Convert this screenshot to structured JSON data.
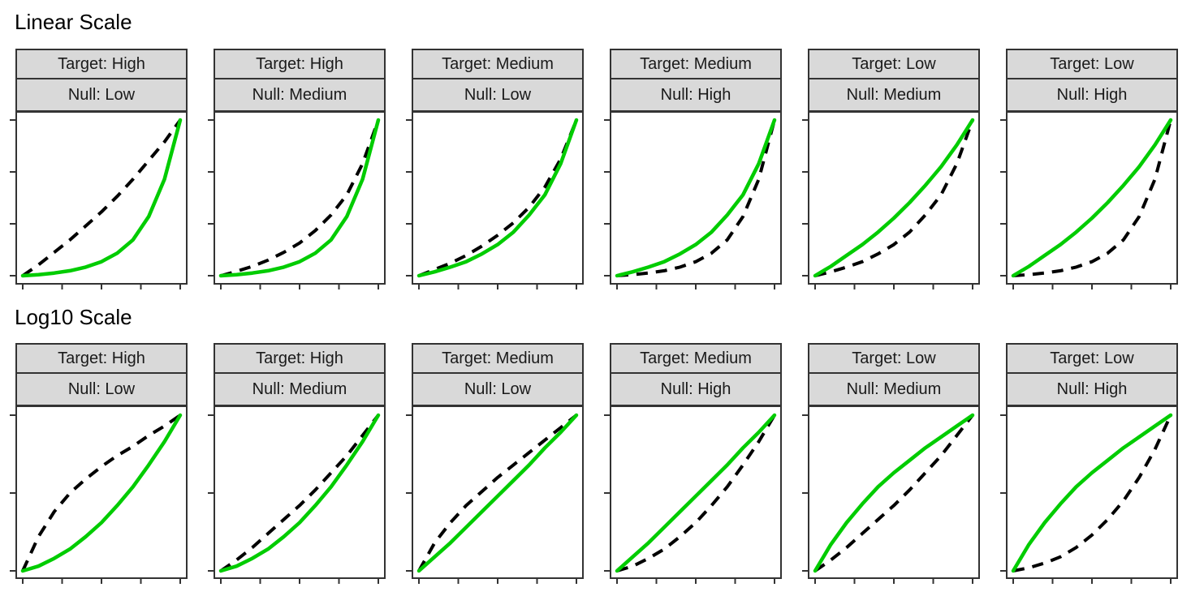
{
  "charts": {
    "colors": {
      "panel_border": "#333333",
      "strip_fill": "#d9d9d9",
      "green_line": "#00cc00",
      "dashed_line": "#000000"
    },
    "chart_data": [
      {
        "type": "line",
        "title": "Linear Scale",
        "facets": [
          {
            "target": "Target: High",
            "null": "Null: Low",
            "series": [
              {
                "style": "solid-green",
                "x": [
                  0,
                  0.1,
                  0.2,
                  0.3,
                  0.4,
                  0.5,
                  0.6,
                  0.7,
                  0.8,
                  0.9,
                  1
                ],
                "y": [
                  0,
                  0.007,
                  0.017,
                  0.032,
                  0.055,
                  0.09,
                  0.145,
                  0.23,
                  0.38,
                  0.62,
                  1
                ]
              },
              {
                "style": "dashed-black",
                "x": [
                  0,
                  0.1,
                  0.2,
                  0.3,
                  0.4,
                  0.5,
                  0.6,
                  0.7,
                  0.8,
                  0.9,
                  1
                ],
                "y": [
                  0,
                  0.07,
                  0.15,
                  0.23,
                  0.32,
                  0.41,
                  0.51,
                  0.62,
                  0.74,
                  0.86,
                  1
                ]
              }
            ]
          },
          {
            "target": "Target: High",
            "null": "Null: Medium",
            "series": [
              {
                "style": "solid-green",
                "x": [
                  0,
                  0.1,
                  0.2,
                  0.3,
                  0.4,
                  0.5,
                  0.6,
                  0.7,
                  0.8,
                  0.9,
                  1
                ],
                "y": [
                  0,
                  0.007,
                  0.017,
                  0.032,
                  0.055,
                  0.09,
                  0.145,
                  0.23,
                  0.38,
                  0.62,
                  1
                ]
              },
              {
                "style": "dashed-black",
                "x": [
                  0,
                  0.1,
                  0.2,
                  0.3,
                  0.4,
                  0.5,
                  0.6,
                  0.7,
                  0.8,
                  0.9,
                  1
                ],
                "y": [
                  0,
                  0.028,
                  0.06,
                  0.1,
                  0.15,
                  0.21,
                  0.29,
                  0.39,
                  0.52,
                  0.72,
                  1
                ]
              }
            ]
          },
          {
            "target": "Target: Medium",
            "null": "Null: Low",
            "series": [
              {
                "style": "solid-green",
                "x": [
                  0,
                  0.1,
                  0.2,
                  0.3,
                  0.4,
                  0.5,
                  0.6,
                  0.7,
                  0.8,
                  0.9,
                  1
                ],
                "y": [
                  0,
                  0.025,
                  0.055,
                  0.09,
                  0.14,
                  0.2,
                  0.28,
                  0.39,
                  0.52,
                  0.72,
                  1
                ]
              },
              {
                "style": "dashed-black",
                "x": [
                  0,
                  0.1,
                  0.2,
                  0.3,
                  0.4,
                  0.5,
                  0.6,
                  0.7,
                  0.8,
                  0.9,
                  1
                ],
                "y": [
                  0,
                  0.04,
                  0.08,
                  0.13,
                  0.19,
                  0.26,
                  0.34,
                  0.44,
                  0.57,
                  0.75,
                  1
                ]
              }
            ]
          },
          {
            "target": "Target: Medium",
            "null": "Null: High",
            "series": [
              {
                "style": "solid-green",
                "x": [
                  0,
                  0.1,
                  0.2,
                  0.3,
                  0.4,
                  0.5,
                  0.6,
                  0.7,
                  0.8,
                  0.9,
                  1
                ],
                "y": [
                  0,
                  0.025,
                  0.055,
                  0.09,
                  0.14,
                  0.2,
                  0.28,
                  0.39,
                  0.52,
                  0.72,
                  1
                ]
              },
              {
                "style": "dashed-black",
                "x": [
                  0,
                  0.1,
                  0.2,
                  0.3,
                  0.4,
                  0.5,
                  0.6,
                  0.7,
                  0.8,
                  0.9,
                  1
                ],
                "y": [
                  0,
                  0.007,
                  0.017,
                  0.032,
                  0.055,
                  0.09,
                  0.145,
                  0.23,
                  0.38,
                  0.62,
                  1
                ]
              }
            ]
          },
          {
            "target": "Target: Low",
            "null": "Null: Medium",
            "series": [
              {
                "style": "solid-green",
                "x": [
                  0,
                  0.1,
                  0.2,
                  0.3,
                  0.4,
                  0.5,
                  0.6,
                  0.7,
                  0.8,
                  0.9,
                  1
                ],
                "y": [
                  0,
                  0.06,
                  0.13,
                  0.2,
                  0.28,
                  0.37,
                  0.47,
                  0.58,
                  0.7,
                  0.84,
                  1
                ]
              },
              {
                "style": "dashed-black",
                "x": [
                  0,
                  0.1,
                  0.2,
                  0.3,
                  0.4,
                  0.5,
                  0.6,
                  0.7,
                  0.8,
                  0.9,
                  1
                ],
                "y": [
                  0,
                  0.025,
                  0.055,
                  0.09,
                  0.14,
                  0.2,
                  0.28,
                  0.39,
                  0.52,
                  0.72,
                  1
                ]
              }
            ]
          },
          {
            "target": "Target: Low",
            "null": "Null: High",
            "series": [
              {
                "style": "solid-green",
                "x": [
                  0,
                  0.1,
                  0.2,
                  0.3,
                  0.4,
                  0.5,
                  0.6,
                  0.7,
                  0.8,
                  0.9,
                  1
                ],
                "y": [
                  0,
                  0.06,
                  0.13,
                  0.2,
                  0.28,
                  0.37,
                  0.47,
                  0.58,
                  0.7,
                  0.84,
                  1
                ]
              },
              {
                "style": "dashed-black",
                "x": [
                  0,
                  0.1,
                  0.2,
                  0.3,
                  0.4,
                  0.5,
                  0.6,
                  0.7,
                  0.8,
                  0.9,
                  1
                ],
                "y": [
                  0,
                  0.007,
                  0.017,
                  0.032,
                  0.055,
                  0.09,
                  0.145,
                  0.23,
                  0.38,
                  0.62,
                  1
                ]
              }
            ]
          }
        ],
        "y_ticks": 4,
        "x_ticks": 5
      },
      {
        "type": "line",
        "title": "Log10 Scale",
        "facets": [
          {
            "target": "Target: High",
            "null": "Null: Low",
            "series": [
              {
                "style": "solid-green",
                "x": [
                  0,
                  0.1,
                  0.2,
                  0.3,
                  0.4,
                  0.5,
                  0.6,
                  0.7,
                  0.8,
                  0.9,
                  1
                ],
                "y": [
                  0,
                  0.03,
                  0.08,
                  0.14,
                  0.22,
                  0.31,
                  0.42,
                  0.54,
                  0.68,
                  0.83,
                  1
                ]
              },
              {
                "style": "dashed-black",
                "x": [
                  0,
                  0.1,
                  0.2,
                  0.3,
                  0.4,
                  0.5,
                  0.6,
                  0.7,
                  0.8,
                  0.9,
                  1
                ],
                "y": [
                  0,
                  0.22,
                  0.38,
                  0.5,
                  0.59,
                  0.67,
                  0.74,
                  0.8,
                  0.87,
                  0.93,
                  1
                ]
              }
            ]
          },
          {
            "target": "Target: High",
            "null": "Null: Medium",
            "series": [
              {
                "style": "solid-green",
                "x": [
                  0,
                  0.1,
                  0.2,
                  0.3,
                  0.4,
                  0.5,
                  0.6,
                  0.7,
                  0.8,
                  0.9,
                  1
                ],
                "y": [
                  0,
                  0.03,
                  0.08,
                  0.14,
                  0.22,
                  0.31,
                  0.42,
                  0.54,
                  0.68,
                  0.83,
                  1
                ]
              },
              {
                "style": "dashed-black",
                "x": [
                  0,
                  0.1,
                  0.2,
                  0.3,
                  0.4,
                  0.5,
                  0.6,
                  0.7,
                  0.8,
                  0.9,
                  1
                ],
                "y": [
                  0,
                  0.07,
                  0.15,
                  0.24,
                  0.33,
                  0.42,
                  0.52,
                  0.63,
                  0.74,
                  0.87,
                  1
                ]
              }
            ]
          },
          {
            "target": "Target: Medium",
            "null": "Null: Low",
            "series": [
              {
                "style": "solid-green",
                "x": [
                  0,
                  0.1,
                  0.2,
                  0.3,
                  0.4,
                  0.5,
                  0.6,
                  0.7,
                  0.8,
                  0.9,
                  1
                ],
                "y": [
                  0,
                  0.09,
                  0.18,
                  0.28,
                  0.38,
                  0.48,
                  0.58,
                  0.68,
                  0.79,
                  0.89,
                  1
                ]
              },
              {
                "style": "dashed-black",
                "x": [
                  0,
                  0.1,
                  0.2,
                  0.3,
                  0.4,
                  0.5,
                  0.6,
                  0.7,
                  0.8,
                  0.9,
                  1
                ],
                "y": [
                  0,
                  0.18,
                  0.31,
                  0.42,
                  0.51,
                  0.6,
                  0.68,
                  0.76,
                  0.84,
                  0.92,
                  1
                ]
              }
            ]
          },
          {
            "target": "Target: Medium",
            "null": "Null: High",
            "series": [
              {
                "style": "solid-green",
                "x": [
                  0,
                  0.1,
                  0.2,
                  0.3,
                  0.4,
                  0.5,
                  0.6,
                  0.7,
                  0.8,
                  0.9,
                  1
                ],
                "y": [
                  0,
                  0.09,
                  0.18,
                  0.28,
                  0.38,
                  0.48,
                  0.58,
                  0.68,
                  0.79,
                  0.89,
                  1
                ]
              },
              {
                "style": "dashed-black",
                "x": [
                  0,
                  0.1,
                  0.2,
                  0.3,
                  0.4,
                  0.5,
                  0.6,
                  0.7,
                  0.8,
                  0.9,
                  1
                ],
                "y": [
                  0,
                  0.03,
                  0.08,
                  0.14,
                  0.22,
                  0.31,
                  0.42,
                  0.54,
                  0.68,
                  0.83,
                  1
                ]
              }
            ]
          },
          {
            "target": "Target: Low",
            "null": "Null: Medium",
            "series": [
              {
                "style": "solid-green",
                "x": [
                  0,
                  0.1,
                  0.2,
                  0.3,
                  0.4,
                  0.5,
                  0.6,
                  0.7,
                  0.8,
                  0.9,
                  1
                ],
                "y": [
                  0,
                  0.17,
                  0.31,
                  0.43,
                  0.54,
                  0.63,
                  0.71,
                  0.79,
                  0.86,
                  0.93,
                  1
                ]
              },
              {
                "style": "dashed-black",
                "x": [
                  0,
                  0.1,
                  0.2,
                  0.3,
                  0.4,
                  0.5,
                  0.6,
                  0.7,
                  0.8,
                  0.9,
                  1
                ],
                "y": [
                  0,
                  0.07,
                  0.15,
                  0.24,
                  0.33,
                  0.42,
                  0.52,
                  0.63,
                  0.74,
                  0.87,
                  1
                ]
              }
            ]
          },
          {
            "target": "Target: Low",
            "null": "Null: High",
            "series": [
              {
                "style": "solid-green",
                "x": [
                  0,
                  0.1,
                  0.2,
                  0.3,
                  0.4,
                  0.5,
                  0.6,
                  0.7,
                  0.8,
                  0.9,
                  1
                ],
                "y": [
                  0,
                  0.17,
                  0.31,
                  0.43,
                  0.54,
                  0.63,
                  0.71,
                  0.79,
                  0.86,
                  0.93,
                  1
                ]
              },
              {
                "style": "dashed-black",
                "x": [
                  0,
                  0.1,
                  0.2,
                  0.3,
                  0.4,
                  0.5,
                  0.6,
                  0.7,
                  0.8,
                  0.9,
                  1
                ],
                "y": [
                  0,
                  0.02,
                  0.05,
                  0.09,
                  0.15,
                  0.23,
                  0.33,
                  0.45,
                  0.6,
                  0.78,
                  1
                ]
              }
            ]
          }
        ],
        "y_ticks": 3,
        "x_ticks": 5
      }
    ]
  }
}
